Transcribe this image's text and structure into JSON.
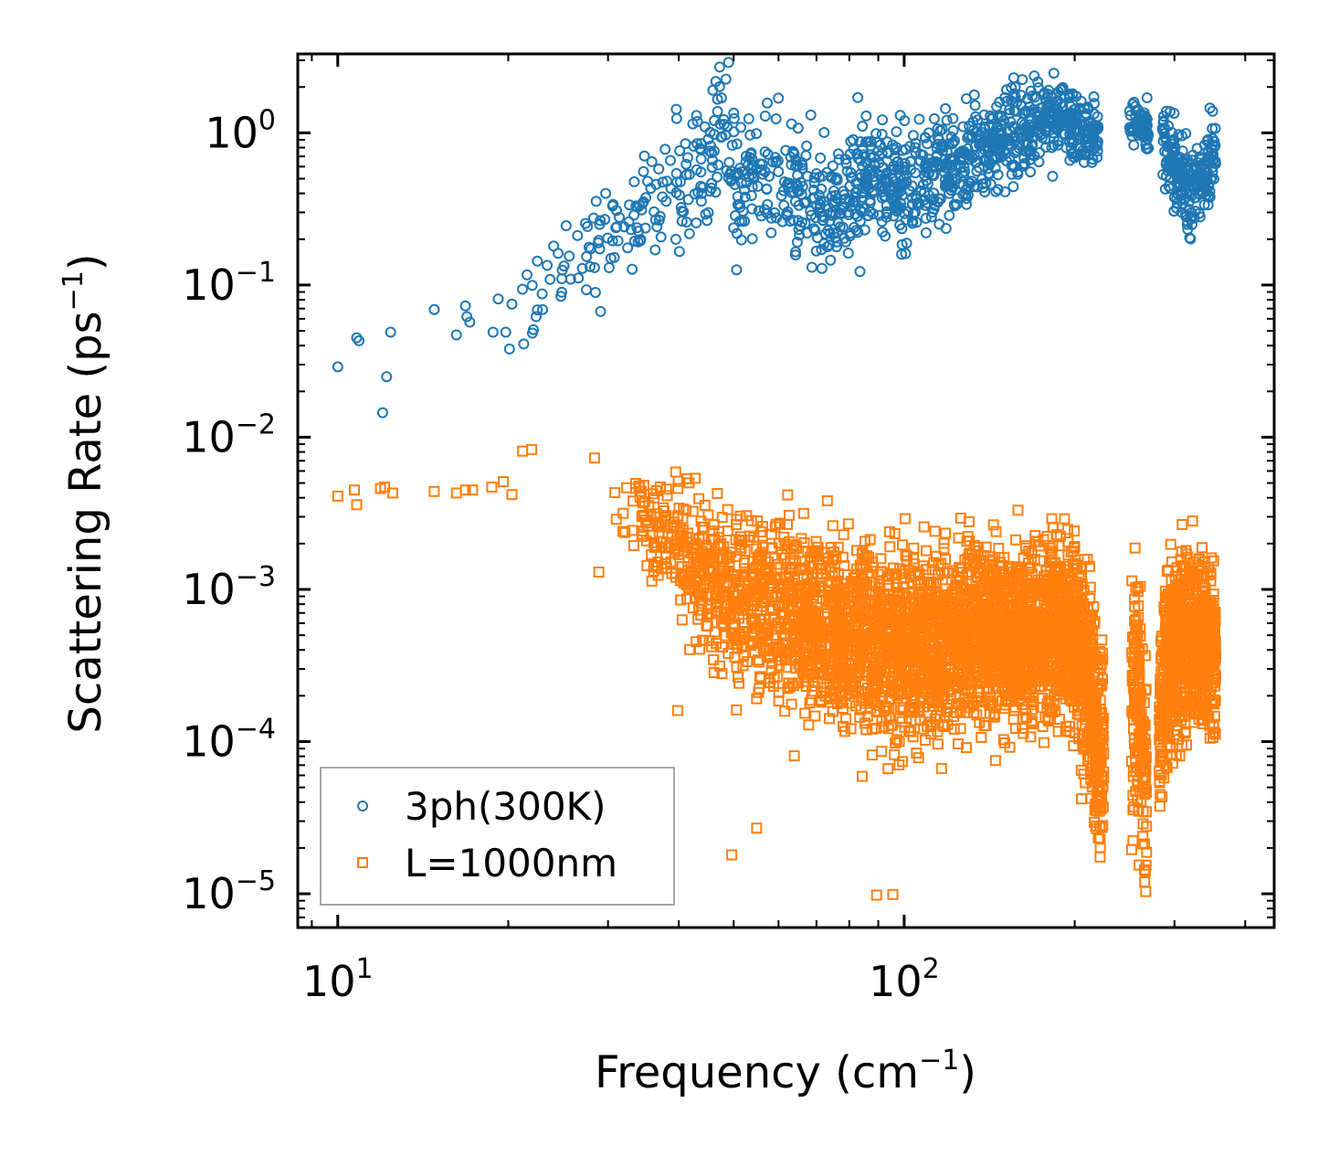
{
  "chart_data": {
    "type": "scatter",
    "xscale": "log",
    "yscale": "log",
    "xlim": [
      8.5,
      450
    ],
    "ylim": [
      6e-06,
      3.3
    ],
    "xlabel": "Frequency (cm⁻¹)",
    "xlabel_parts": {
      "base": "Frequency (cm",
      "sup": "−1",
      "tail": ")"
    },
    "ylabel": "Scattering Rate (ps⁻¹)",
    "ylabel_parts": {
      "base": "Scattering Rate (ps",
      "sup": "−1",
      "tail": ")"
    },
    "x_ticks": [
      {
        "value": 10,
        "base": "10",
        "exp": "1"
      },
      {
        "value": 100,
        "base": "10",
        "exp": "2"
      }
    ],
    "y_ticks": [
      {
        "value": 1,
        "base": "10",
        "exp": "0"
      },
      {
        "value": 0.1,
        "base": "10",
        "exp": "−1"
      },
      {
        "value": 0.01,
        "base": "10",
        "exp": "−2"
      },
      {
        "value": 0.001,
        "base": "10",
        "exp": "−3"
      },
      {
        "value": 0.0001,
        "base": "10",
        "exp": "−4"
      },
      {
        "value": 1e-05,
        "base": "10",
        "exp": "−5"
      }
    ],
    "legend_position": "lower-left",
    "series": [
      {
        "name": "3ph(300K)",
        "marker": "circle",
        "color": "#1f77b4",
        "trend": [
          [
            10,
            0.03
          ],
          [
            11,
            0.045
          ],
          [
            12,
            0.03
          ],
          [
            15,
            0.06
          ],
          [
            17,
            0.065
          ],
          [
            20,
            0.07
          ],
          [
            23,
            0.12
          ],
          [
            26,
            0.16
          ],
          [
            30,
            0.2
          ],
          [
            35,
            0.3
          ],
          [
            40,
            0.45
          ],
          [
            45,
            0.6
          ],
          [
            47,
            1.05
          ],
          [
            50,
            0.5
          ],
          [
            55,
            0.5
          ],
          [
            60,
            0.45
          ],
          [
            70,
            0.35
          ],
          [
            75,
            0.3
          ],
          [
            80,
            0.42
          ],
          [
            90,
            0.55
          ],
          [
            100,
            0.45
          ],
          [
            120,
            0.6
          ],
          [
            140,
            0.8
          ],
          [
            160,
            1.0
          ],
          [
            180,
            1.3
          ],
          [
            200,
            1.1
          ],
          [
            215,
            0.9
          ],
          [
            260,
            1.2
          ],
          [
            290,
            0.8
          ],
          [
            320,
            0.4
          ],
          [
            330,
            0.45
          ],
          [
            350,
            0.7
          ]
        ],
        "spread": [
          [
            10,
            0.25
          ],
          [
            30,
            0.35
          ],
          [
            45,
            0.45
          ],
          [
            100,
            0.4
          ],
          [
            200,
            0.25
          ],
          [
            260,
            0.12
          ],
          [
            300,
            0.3
          ],
          [
            350,
            0.25
          ]
        ],
        "gaps": [
          [
            220,
            250
          ],
          [
            270,
            285
          ]
        ],
        "points": [
          [
            10.0,
            0.029
          ],
          [
            10.8,
            0.045
          ],
          [
            10.9,
            0.043
          ],
          [
            12.0,
            0.0145
          ],
          [
            12.2,
            0.025
          ],
          [
            12.4,
            0.049
          ],
          [
            14.8,
            0.069
          ],
          [
            16.2,
            0.047
          ],
          [
            16.8,
            0.073
          ],
          [
            16.9,
            0.062
          ],
          [
            17.1,
            0.057
          ],
          [
            18.8,
            0.049
          ],
          [
            19.2,
            0.081
          ],
          [
            19.8,
            0.049
          ],
          [
            20.1,
            0.038
          ],
          [
            20.3,
            0.075
          ],
          [
            21.3,
            0.041
          ],
          [
            22.4,
            0.062
          ],
          [
            23.0,
            0.069
          ],
          [
            29.1,
            0.067
          ],
          [
            28.4,
            0.13
          ],
          [
            29.0,
            0.25
          ]
        ],
        "count": 1600
      },
      {
        "name": "L=1000nm",
        "marker": "square",
        "color": "#ff7f0e",
        "trend": [
          [
            10,
            0.0041
          ],
          [
            12,
            0.0045
          ],
          [
            15,
            0.0045
          ],
          [
            20,
            0.0045
          ],
          [
            25,
            0.004
          ],
          [
            30,
            0.0037
          ],
          [
            35,
            0.003
          ],
          [
            40,
            0.0018
          ],
          [
            50,
            0.0009
          ],
          [
            60,
            0.0007
          ],
          [
            70,
            0.0006
          ],
          [
            80,
            0.00045
          ],
          [
            100,
            0.00045
          ],
          [
            130,
            0.0005
          ],
          [
            160,
            0.0005
          ],
          [
            200,
            0.0005
          ],
          [
            215,
            0.0002
          ],
          [
            220,
            8e-05
          ],
          [
            260,
            0.0002
          ],
          [
            270,
            3e-05
          ],
          [
            290,
            0.0003
          ],
          [
            320,
            0.0005
          ],
          [
            350,
            0.0004
          ]
        ],
        "spread": [
          [
            10,
            0.06
          ],
          [
            20,
            0.1
          ],
          [
            30,
            0.25
          ],
          [
            40,
            0.45
          ],
          [
            60,
            0.6
          ],
          [
            100,
            0.6
          ],
          [
            200,
            0.55
          ],
          [
            215,
            0.7
          ],
          [
            260,
            0.8
          ],
          [
            300,
            0.6
          ],
          [
            350,
            0.5
          ]
        ],
        "gaps": [
          [
            225,
            252
          ],
          [
            268,
            282
          ]
        ],
        "points": [
          [
            10.0,
            0.0041
          ],
          [
            10.7,
            0.0045
          ],
          [
            10.8,
            0.0036
          ],
          [
            11.9,
            0.0046
          ],
          [
            12.1,
            0.0047
          ],
          [
            12.5,
            0.0043
          ],
          [
            14.8,
            0.0044
          ],
          [
            16.2,
            0.0043
          ],
          [
            16.8,
            0.0045
          ],
          [
            17.3,
            0.0045
          ],
          [
            18.7,
            0.0047
          ],
          [
            19.6,
            0.0051
          ],
          [
            20.3,
            0.0042
          ],
          [
            21.2,
            0.0081
          ],
          [
            22.0,
            0.0083
          ],
          [
            28.4,
            0.0073
          ],
          [
            28.9,
            0.0013
          ],
          [
            39.8,
            0.00016
          ],
          [
            45.3,
            0.00046
          ],
          [
            49.6,
            1.8e-05
          ],
          [
            54.9,
            2.7e-05
          ],
          [
            89.4,
            9.8e-06
          ],
          [
            95.5,
            9.9e-06
          ]
        ],
        "count": 5200
      }
    ]
  }
}
